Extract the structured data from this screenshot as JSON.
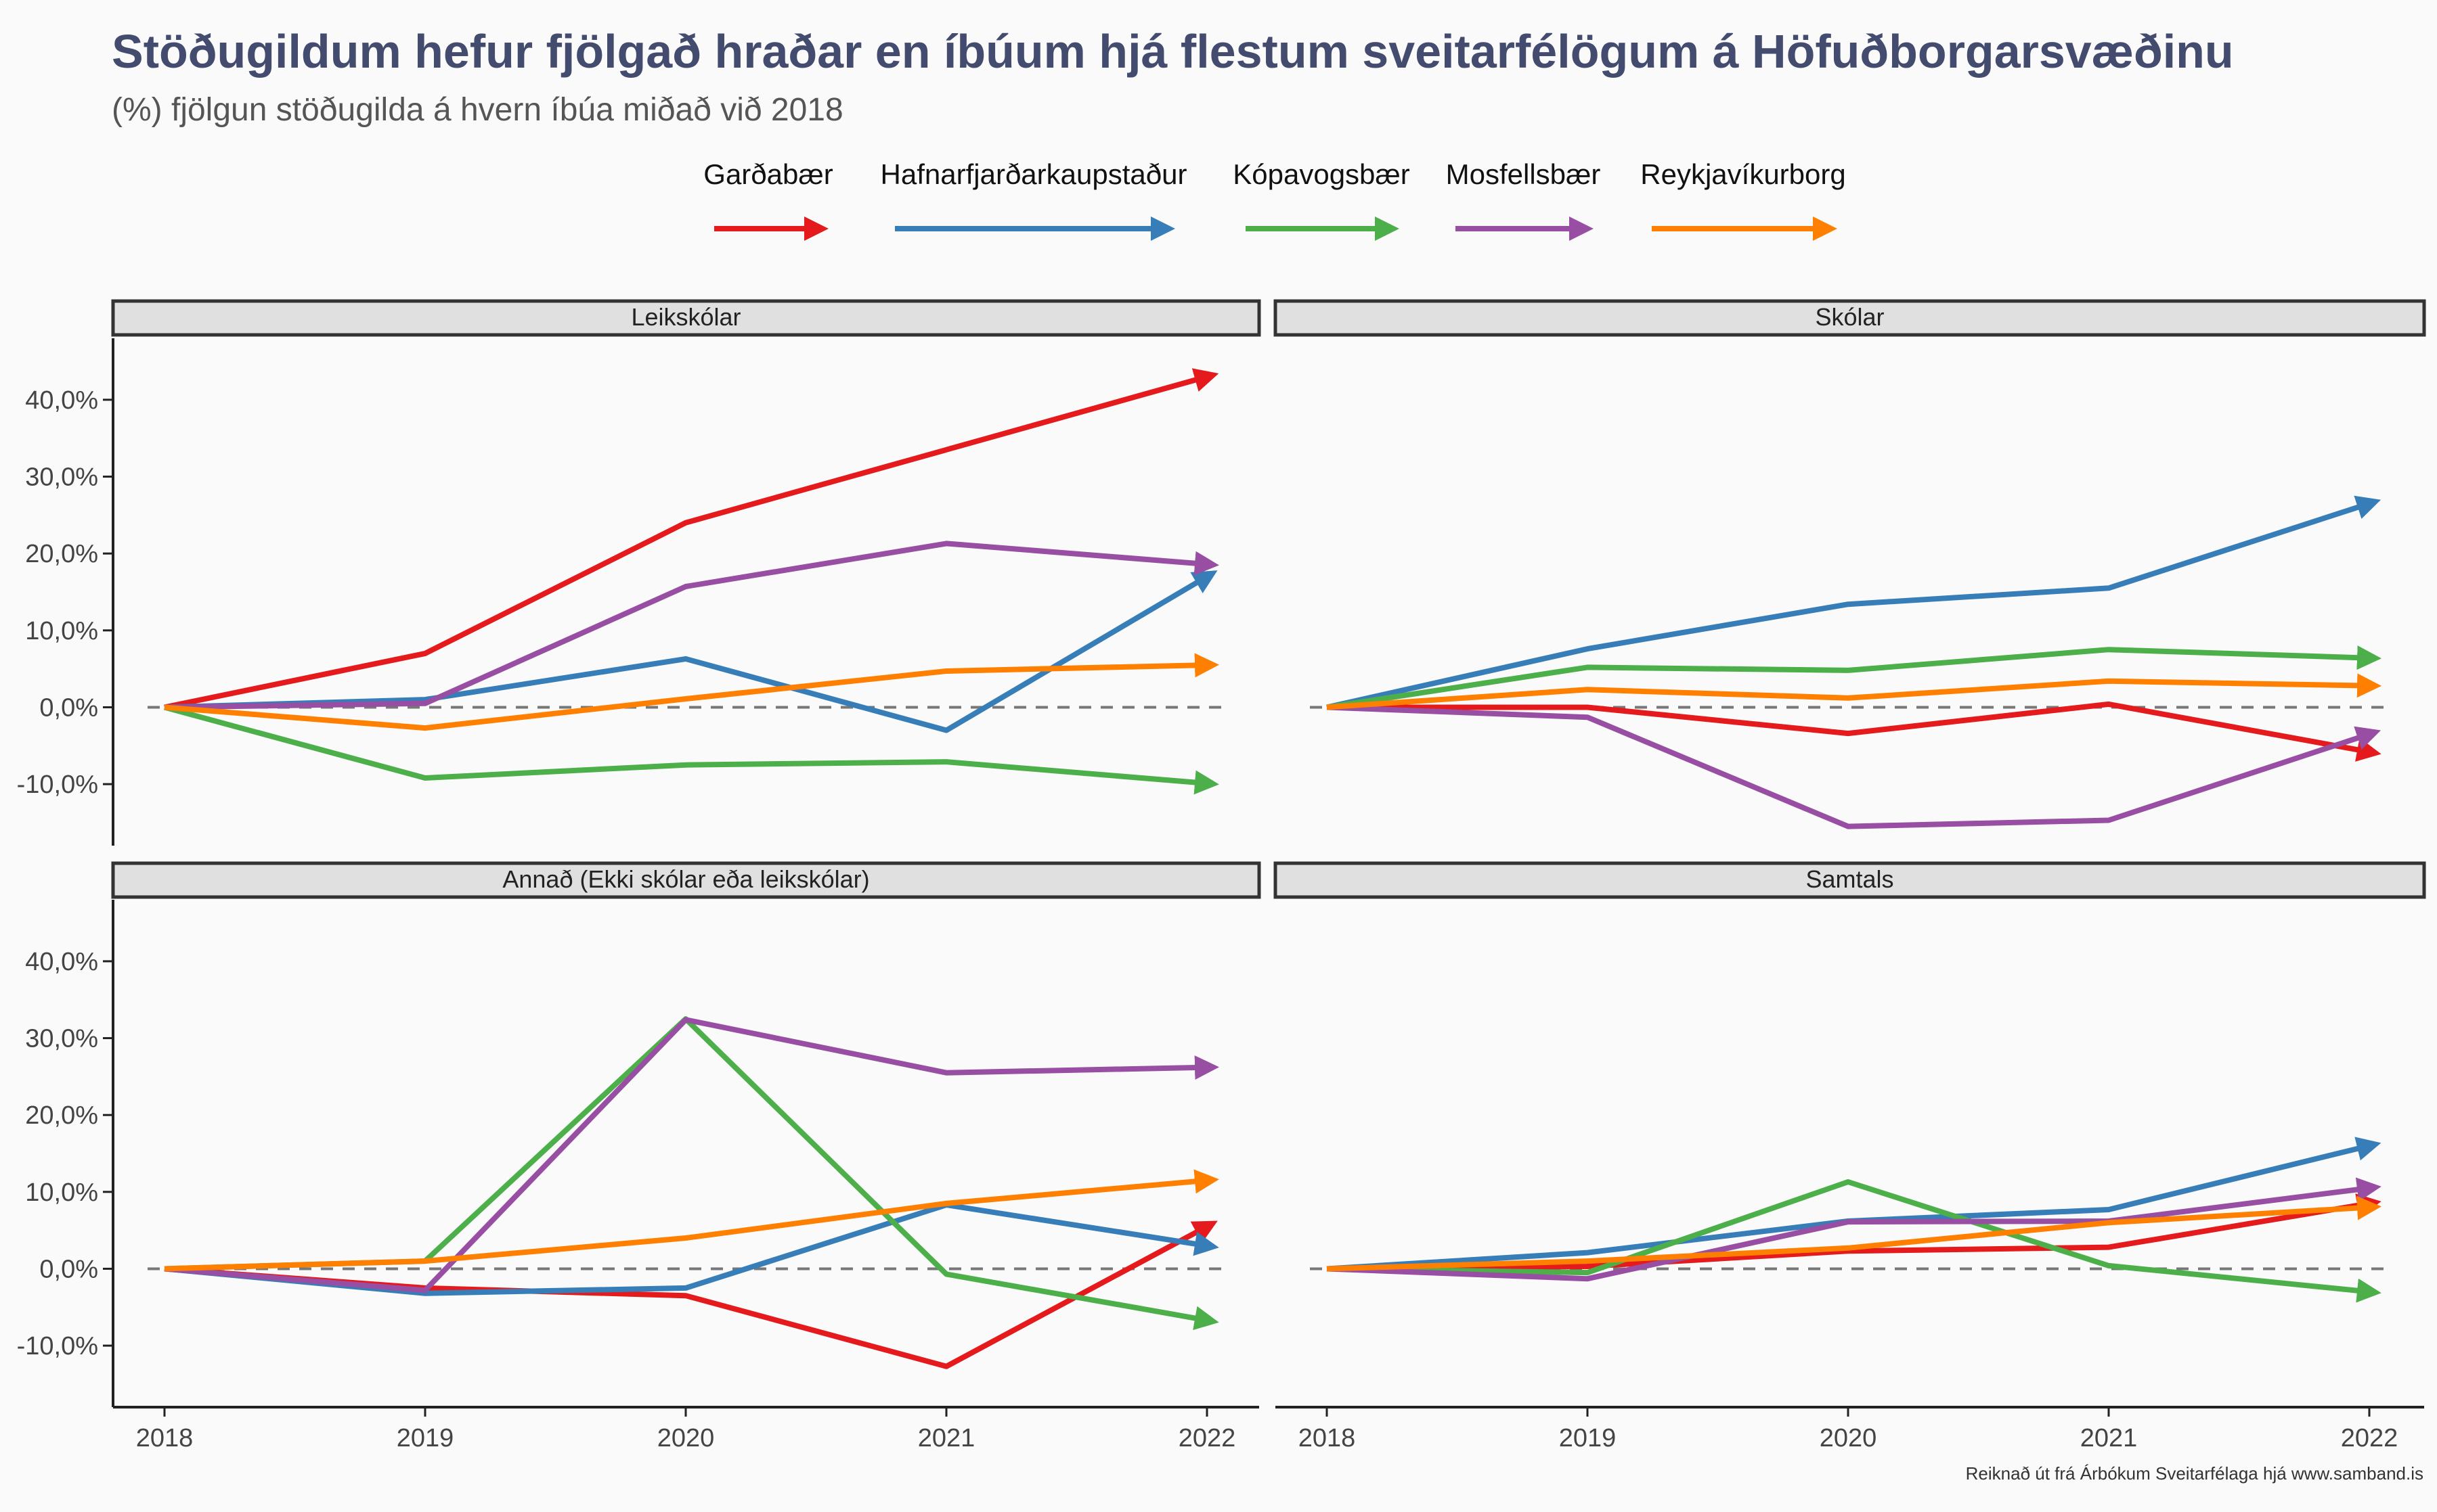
{
  "header": {
    "title": "Stöðugildum hefur fjölgað hraðar en íbúum hjá flestum sveitarfélögum á Höfuðborgarsvæðinu",
    "subtitle": "(%) fjölgun stöðugilda á hvern íbúa miðað við 2018"
  },
  "caption": "Reiknað út frá Árbókum Sveitarfélaga hjá www.samband.is",
  "chart_data": {
    "type": "line",
    "x": [
      "2018",
      "2019",
      "2020",
      "2021",
      "2022"
    ],
    "ylim": [
      -0.18,
      0.48
    ],
    "y_ticks": [
      {
        "value": -0.1,
        "label": "-10,0%"
      },
      {
        "value": 0.0,
        "label": "0,0%"
      },
      {
        "value": 0.1,
        "label": "10,0%"
      },
      {
        "value": 0.2,
        "label": "20,0%"
      },
      {
        "value": 0.3,
        "label": "30,0%"
      },
      {
        "value": 0.4,
        "label": "40,0%"
      }
    ],
    "reference_line": 0,
    "legend_position": "top",
    "series_meta": [
      {
        "name": "Garðabær",
        "color": "#e41a1c"
      },
      {
        "name": "Hafnarfjarðarkaupstaður",
        "color": "#377eb8"
      },
      {
        "name": "Kópavogsbær",
        "color": "#4daf4a"
      },
      {
        "name": "Mosfellsbær",
        "color": "#984ea3"
      },
      {
        "name": "Reykjavíkurborg",
        "color": "#ff7f00"
      }
    ],
    "panels": [
      {
        "title": "Leikskólar",
        "series": [
          {
            "name": "Garðabær",
            "values": [
              0,
              0.07,
              0.24,
              0.335,
              0.43
            ]
          },
          {
            "name": "Hafnarfjarðarkaupstaður",
            "values": [
              0,
              0.01,
              0.063,
              -0.03,
              0.17
            ]
          },
          {
            "name": "Kópavogsbær",
            "values": [
              0,
              -0.092,
              -0.075,
              -0.071,
              -0.099
            ]
          },
          {
            "name": "Mosfellsbær",
            "values": [
              0,
              0.005,
              0.157,
              0.213,
              0.186
            ]
          },
          {
            "name": "Reykjavíkurborg",
            "values": [
              0,
              -0.027,
              0.011,
              0.047,
              0.055
            ]
          }
        ]
      },
      {
        "title": "Skólar",
        "series": [
          {
            "name": "Garðabær",
            "values": [
              0,
              0.0,
              -0.034,
              0.004,
              -0.058
            ]
          },
          {
            "name": "Hafnarfjarðarkaupstaður",
            "values": [
              0,
              0.076,
              0.134,
              0.155,
              0.265
            ]
          },
          {
            "name": "Kópavogsbær",
            "values": [
              0,
              0.052,
              0.048,
              0.075,
              0.064
            ]
          },
          {
            "name": "Mosfellsbær",
            "values": [
              0,
              -0.013,
              -0.155,
              -0.147,
              -0.035
            ]
          },
          {
            "name": "Reykjavíkurborg",
            "values": [
              0,
              0.023,
              0.012,
              0.034,
              0.028
            ]
          }
        ]
      },
      {
        "title": "Annað (Ekki skólar eða leikskólar)",
        "series": [
          {
            "name": "Garðabær",
            "values": [
              0,
              -0.025,
              -0.035,
              -0.127,
              0.055
            ]
          },
          {
            "name": "Hafnarfjarðarkaupstaður",
            "values": [
              0,
              -0.032,
              -0.025,
              0.083,
              0.03
            ]
          },
          {
            "name": "Kópavogsbær",
            "values": [
              0,
              0.01,
              0.325,
              -0.007,
              -0.067
            ]
          },
          {
            "name": "Mosfellsbær",
            "values": [
              0,
              -0.028,
              0.324,
              0.255,
              0.262
            ]
          },
          {
            "name": "Reykjavíkurborg",
            "values": [
              0,
              0.01,
              0.04,
              0.085,
              0.115
            ]
          }
        ]
      },
      {
        "title": "Samtals",
        "series": [
          {
            "name": "Garðabær",
            "values": [
              0,
              0.003,
              0.023,
              0.028,
              0.085
            ]
          },
          {
            "name": "Hafnarfjarðarkaupstaður",
            "values": [
              0,
              0.021,
              0.062,
              0.077,
              0.16
            ]
          },
          {
            "name": "Kópavogsbær",
            "values": [
              0,
              -0.005,
              0.113,
              0.004,
              -0.03
            ]
          },
          {
            "name": "Mosfellsbær",
            "values": [
              0,
              -0.013,
              0.061,
              0.062,
              0.105
            ]
          },
          {
            "name": "Reykjavíkurborg",
            "values": [
              0,
              0.01,
              0.027,
              0.06,
              0.08
            ]
          }
        ]
      }
    ]
  }
}
